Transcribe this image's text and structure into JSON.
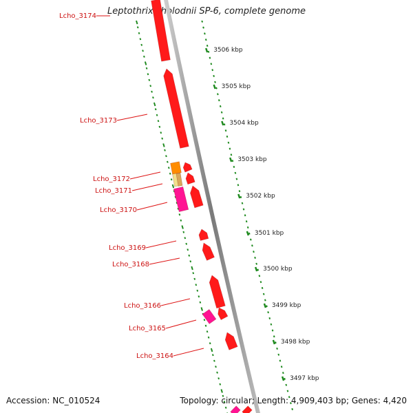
{
  "title": "Leptothrix cholodnii SP-6, complete genome",
  "footer": {
    "accession": "Accession: NC_010524",
    "topology": "Topology: circular; Length: 4,909,403 bp; Genes: 4,420"
  },
  "colors": {
    "backbone": "#8a8a8a",
    "tick": "#1f8a1f",
    "label_line": "#dd1111",
    "gene_red": "#ff1a1a",
    "gene_orange": "#ff8c00",
    "gene_magenta": "#ff1493",
    "gene_tan": "#d9a85a",
    "gene_yellow": "#f2e08a"
  },
  "scale_ticks": [
    {
      "label": "3506 kbp"
    },
    {
      "label": "3505 kbp"
    },
    {
      "label": "3504 kbp"
    },
    {
      "label": "3503 kbp"
    },
    {
      "label": "3502 kbp"
    },
    {
      "label": "3501 kbp"
    },
    {
      "label": "3500 kbp"
    },
    {
      "label": "3499 kbp"
    },
    {
      "label": "3498 kbp"
    },
    {
      "label": "3497 kbp"
    }
  ],
  "gene_labels": [
    {
      "name": "Lcho_3174"
    },
    {
      "name": "Lcho_3173"
    },
    {
      "name": "Lcho_3172"
    },
    {
      "name": "Lcho_3171"
    },
    {
      "name": "Lcho_3170"
    },
    {
      "name": "Lcho_3169"
    },
    {
      "name": "Lcho_3168"
    },
    {
      "name": "Lcho_3166"
    },
    {
      "name": "Lcho_3165"
    },
    {
      "name": "Lcho_3164"
    }
  ]
}
